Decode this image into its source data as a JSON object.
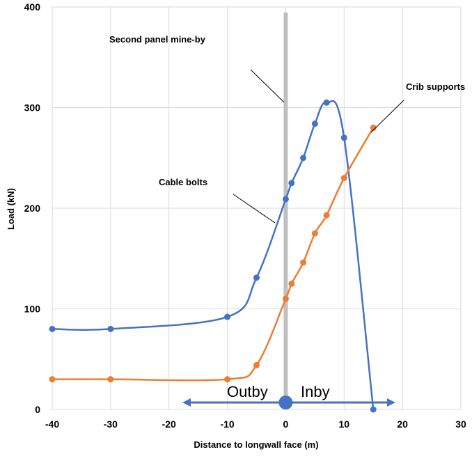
{
  "chart_data": {
    "type": "line",
    "title": "",
    "xlabel": "Distance to longwall face (m)",
    "ylabel": "Load (kN)",
    "xlim": [
      -40,
      30
    ],
    "ylim": [
      0,
      400
    ],
    "xticks": [
      -40,
      -30,
      -20,
      -10,
      0,
      10,
      20,
      30
    ],
    "yticks": [
      0,
      100,
      200,
      300,
      400
    ],
    "grid": true,
    "series": [
      {
        "name": "Cable bolts",
        "color": "#4472C4",
        "x": [
          -40,
          -30,
          -10,
          -5,
          0,
          1,
          3,
          5,
          7,
          10,
          15
        ],
        "y": [
          80,
          80,
          92,
          131,
          209,
          225,
          250,
          284,
          305,
          270,
          0
        ]
      },
      {
        "name": "Crib supports",
        "color": "#ED7D31",
        "x": [
          -40,
          -30,
          -10,
          -5,
          0,
          1,
          3,
          5,
          7,
          10,
          15
        ],
        "y": [
          30,
          30,
          30,
          44,
          110,
          125,
          146,
          175,
          193,
          230,
          280
        ]
      }
    ],
    "annotations": {
      "mine_by": "Second panel mine-by",
      "mine_by_x": 0,
      "cable": "Cable bolts",
      "crib": "Crib supports",
      "outby": "Outby",
      "inby": "Inby"
    }
  }
}
